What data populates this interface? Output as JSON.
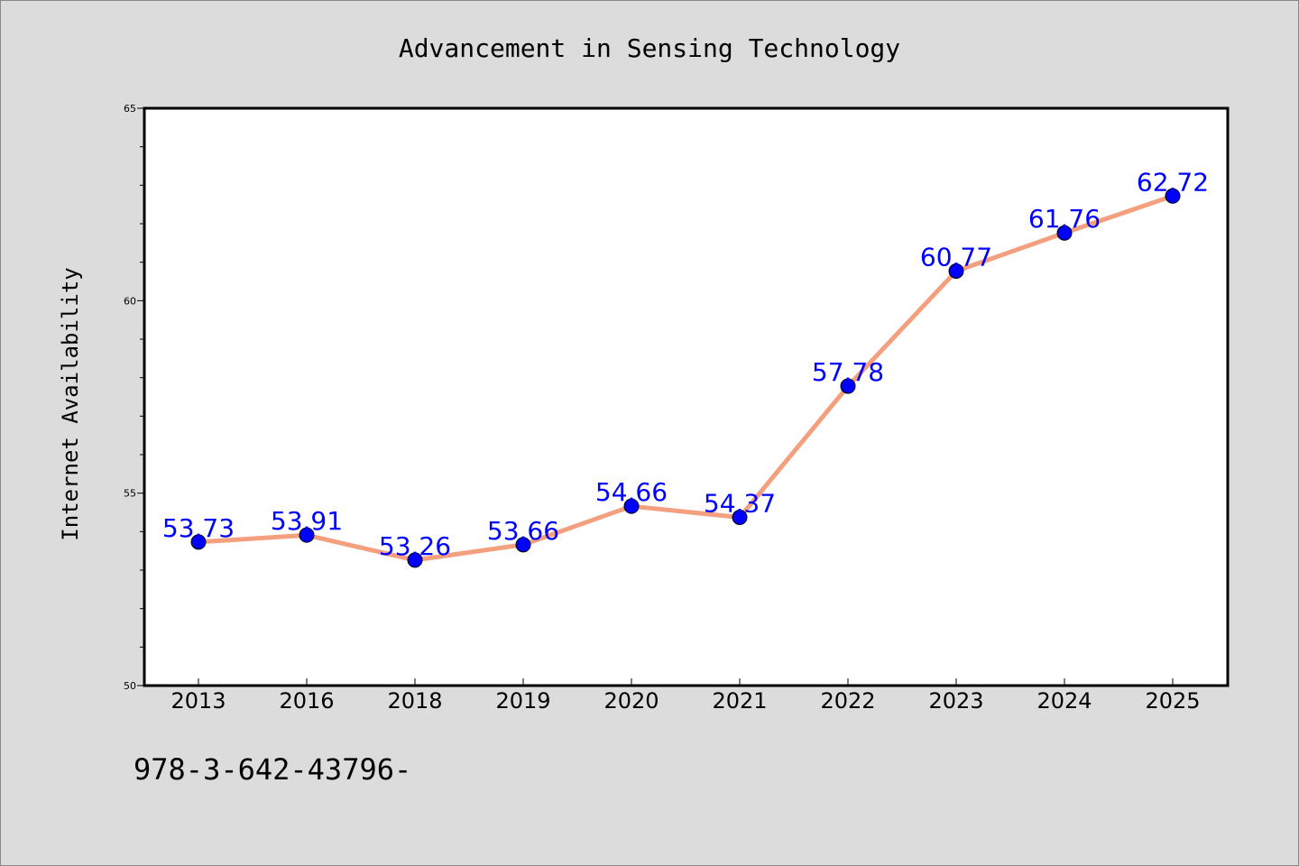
{
  "chart_data": {
    "type": "line",
    "title": "Advancement in Sensing Technology",
    "xlabel": "",
    "ylabel": "Internet Availability",
    "categories": [
      "2013",
      "2016",
      "2018",
      "2019",
      "2020",
      "2021",
      "2022",
      "2023",
      "2024",
      "2025"
    ],
    "series": [
      {
        "values": [
          53.73,
          53.91,
          53.26,
          53.66,
          54.66,
          54.37,
          57.78,
          60.77,
          61.76,
          62.72
        ]
      }
    ],
    "data_labels": [
      "53.73",
      "53.91",
      "53.26",
      "53.66",
      "54.66",
      "54.37",
      "57.78",
      "60.77",
      "61.76",
      "62.72"
    ],
    "ylim": [
      50,
      65
    ],
    "yticks": [
      50,
      55,
      60,
      65
    ],
    "ytick_labels": [
      "50",
      "55",
      "60",
      "65"
    ],
    "grid": false,
    "line_color": "#f4a07e",
    "marker_color": "#0000ff",
    "label_color": "#0000ff",
    "background_color": "#dcdcdc",
    "plot_background": "#ffffff"
  },
  "footer_text": "978-3-642-43796-"
}
